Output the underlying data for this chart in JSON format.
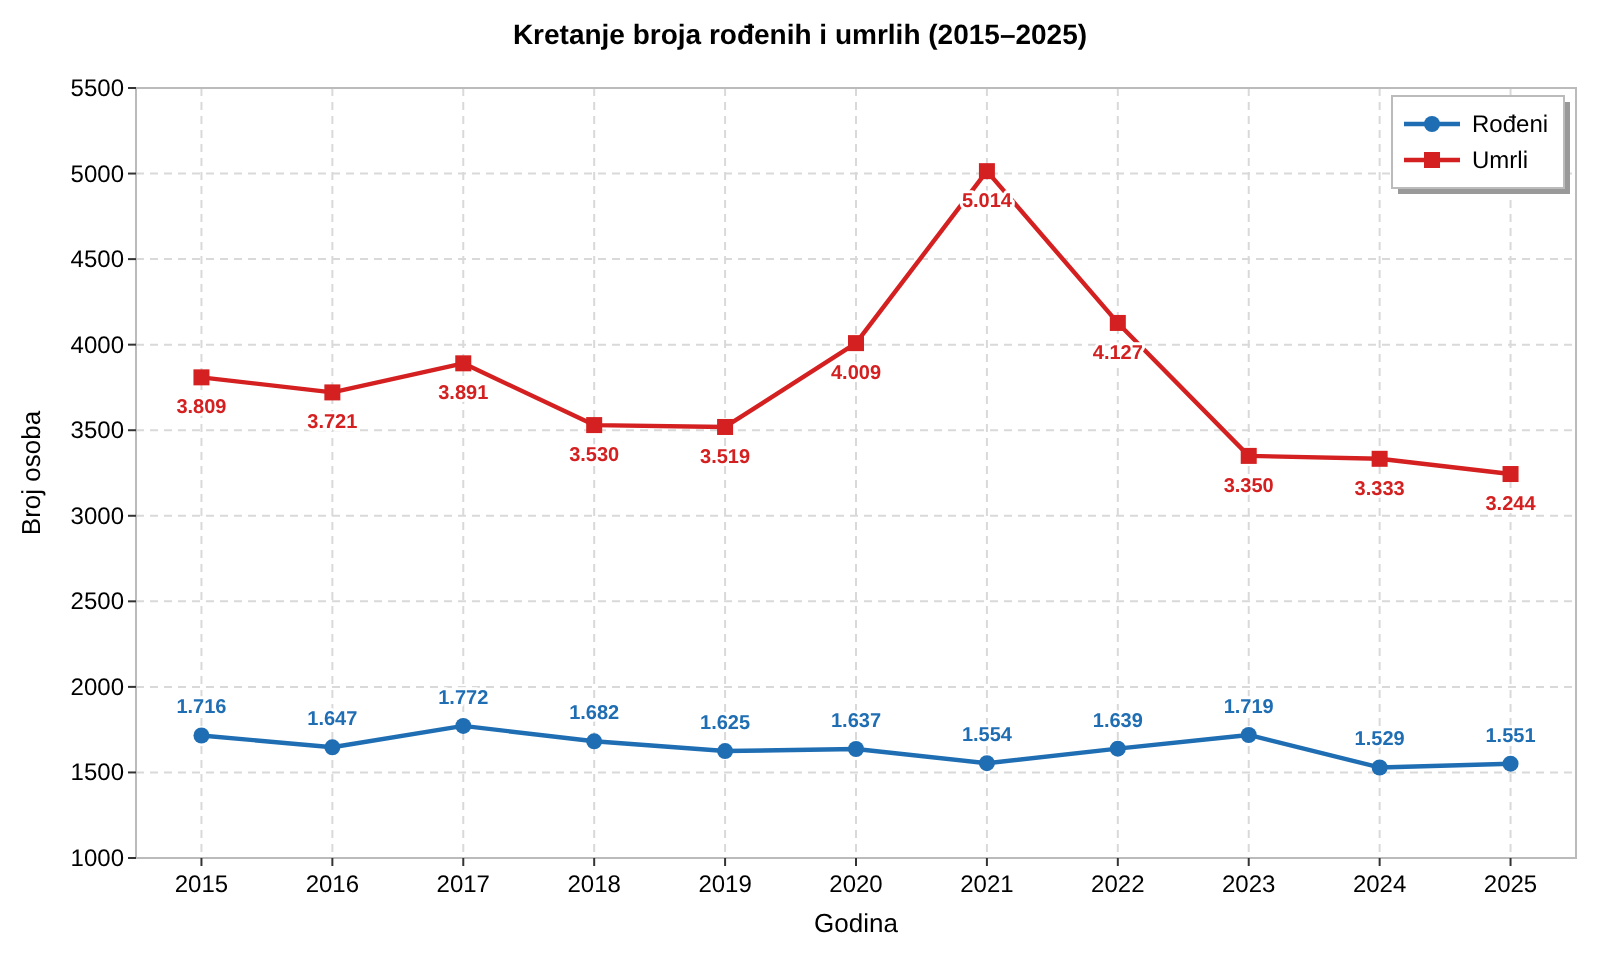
{
  "chart_data": {
    "type": "line",
    "title": "Kretanje broja rođenih i umrlih (2015–2025)",
    "xlabel": "Godina",
    "ylabel": "Broj osoba",
    "categories": [
      "2015",
      "2016",
      "2017",
      "2018",
      "2019",
      "2020",
      "2021",
      "2022",
      "2023",
      "2024",
      "2025"
    ],
    "series": [
      {
        "name": "Rođeni",
        "color": "#1f6eb3",
        "marker": "circle",
        "values": [
          1716,
          1647,
          1772,
          1682,
          1625,
          1637,
          1554,
          1639,
          1719,
          1529,
          1551
        ],
        "value_labels": [
          "1.716",
          "1.647",
          "1.772",
          "1.682",
          "1.625",
          "1.637",
          "1.554",
          "1.639",
          "1.719",
          "1.529",
          "1.551"
        ]
      },
      {
        "name": "Umrli",
        "color": "#d42020",
        "marker": "square",
        "values": [
          3809,
          3721,
          3891,
          3530,
          3519,
          4009,
          5014,
          4127,
          3350,
          3333,
          3244
        ],
        "value_labels": [
          "3.809",
          "3.721",
          "3.891",
          "3.530",
          "3.519",
          "4.009",
          "5.014",
          "4.127",
          "3.350",
          "3.333",
          "3.244"
        ]
      }
    ],
    "ylim": [
      1000,
      5500
    ],
    "yticks": [
      1000,
      1500,
      2000,
      2500,
      3000,
      3500,
      4000,
      4500,
      5000,
      5500
    ],
    "grid": true,
    "line_style": "solid",
    "legend": "top right"
  }
}
